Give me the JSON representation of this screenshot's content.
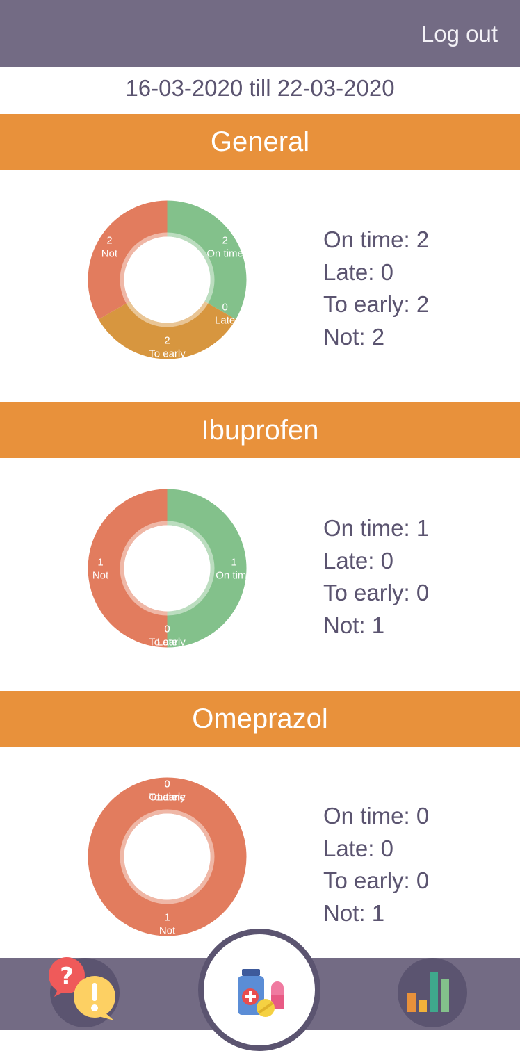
{
  "header": {
    "logout_label": "Log out"
  },
  "date_range": "16-03-2020 till 22-03-2020",
  "colors": {
    "on_time": "#83c18b",
    "late": "#83c18b",
    "to_early": "#d7963f",
    "not": "#e27c5e",
    "header_bar": "#736b84",
    "section_bar": "#e8913b"
  },
  "sections": [
    {
      "title": "General",
      "stats": [
        "On time: 2",
        "Late: 0",
        "To early: 2",
        "Not: 2"
      ]
    },
    {
      "title": "Ibuprofen",
      "stats": [
        "On time: 1",
        "Late: 0",
        "To early: 0",
        "Not: 1"
      ]
    },
    {
      "title": "Omeprazol",
      "stats": [
        "On time: 0",
        "Late: 0",
        "To early: 0",
        "Not: 1"
      ]
    }
  ],
  "chart_data": [
    {
      "type": "pie",
      "categories": [
        "On time",
        "Late",
        "To early",
        "Not"
      ],
      "values": [
        2,
        0,
        2,
        2
      ],
      "title": "General"
    },
    {
      "type": "pie",
      "categories": [
        "On time",
        "Late",
        "To early",
        "Not"
      ],
      "values": [
        1,
        0,
        0,
        1
      ],
      "title": "Ibuprofen"
    },
    {
      "type": "pie",
      "categories": [
        "On time",
        "Late",
        "To early",
        "Not"
      ],
      "values": [
        0,
        0,
        0,
        1
      ],
      "title": "Omeprazol"
    }
  ],
  "nav": {
    "left_icon": "help-alert-icon",
    "center_icon": "medication-icon",
    "right_icon": "bar-chart-icon"
  }
}
